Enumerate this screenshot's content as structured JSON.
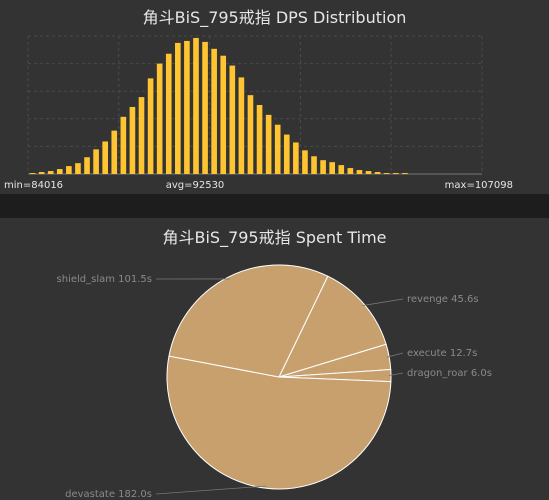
{
  "chart_data": [
    {
      "type": "bar",
      "title": "角斗BiS_795戒指 DPS Distribution",
      "color": "#ffc431",
      "grid": true,
      "ylim": [
        0,
        140
      ],
      "values": [
        1,
        2,
        3,
        5,
        8,
        11,
        17,
        25,
        33,
        44,
        58,
        68,
        78,
        97,
        112,
        122,
        133,
        135,
        138,
        134,
        127,
        120,
        110,
        98,
        80,
        70,
        60,
        50,
        40,
        32,
        24,
        18,
        14,
        12,
        9,
        6,
        4,
        3,
        2,
        1,
        1,
        1,
        0,
        0,
        0,
        0,
        0,
        0,
        0,
        0
      ],
      "labels": {
        "min": "min=84016",
        "avg": "avg=92530",
        "max": "max=107098"
      }
    },
    {
      "type": "pie",
      "title": "角斗BiS_795戒指 Spent Time",
      "color": "#c8a06e",
      "slices": [
        {
          "name": "revenge",
          "value": 45.6,
          "label": "revenge 45.6s"
        },
        {
          "name": "execute",
          "value": 12.7,
          "label": "execute 12.7s"
        },
        {
          "name": "dragon_roar",
          "value": 6.0,
          "label": "dragon_roar 6.0s"
        },
        {
          "name": "devastate",
          "value": 182.0,
          "label": "devastate 182.0s"
        },
        {
          "name": "shield_slam",
          "value": 101.5,
          "label": "shield_slam 101.5s"
        }
      ]
    }
  ]
}
